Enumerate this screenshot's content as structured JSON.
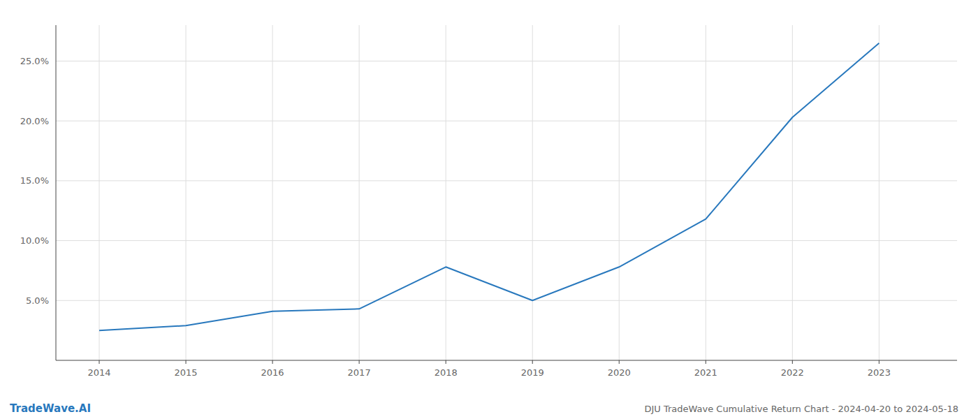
{
  "chart_data": {
    "type": "line",
    "title": "DJU TradeWave Cumulative Return Chart - 2024-04-20 to 2024-05-18",
    "annotations": [
      "TradeWave.AI"
    ],
    "x": [
      2014,
      2015,
      2016,
      2017,
      2018,
      2019,
      2020,
      2021,
      2022,
      2023
    ],
    "values": [
      2.5,
      2.9,
      4.1,
      4.3,
      7.8,
      5.0,
      7.8,
      11.8,
      20.3,
      26.5
    ],
    "color": "#2878bd",
    "xlim": [
      2013.5,
      2023.9
    ],
    "xticks": [
      2014,
      2015,
      2016,
      2017,
      2018,
      2019,
      2020,
      2021,
      2022,
      2023
    ],
    "ylim": [
      0,
      28
    ],
    "yticks": [
      {
        "value": 5.0,
        "label": "5.0%"
      },
      {
        "value": 10.0,
        "label": "10.0%"
      },
      {
        "value": 15.0,
        "label": "15.0%"
      },
      {
        "value": 20.0,
        "label": "20.0%"
      },
      {
        "value": 25.0,
        "label": "25.0%"
      }
    ],
    "grid": true
  }
}
